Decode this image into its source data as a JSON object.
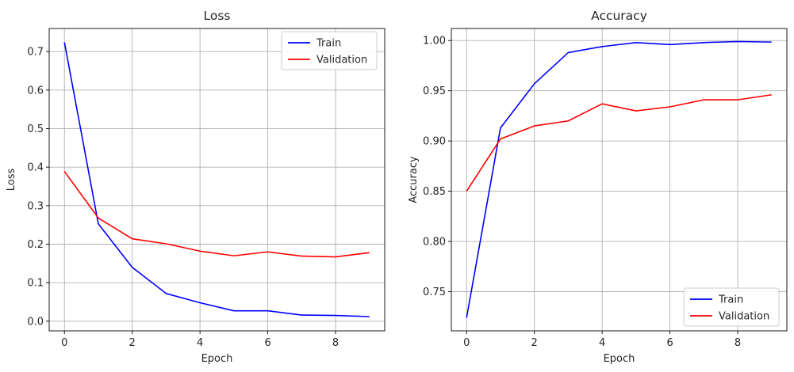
{
  "chart_data": [
    {
      "type": "line",
      "title": "Loss",
      "xlabel": "Epoch",
      "ylabel": "Loss",
      "x": [
        0,
        1,
        2,
        3,
        4,
        5,
        6,
        7,
        8,
        9
      ],
      "xlim": [
        -0.45,
        9.45
      ],
      "ylim": [
        -0.025,
        0.76
      ],
      "xticks": [
        0,
        2,
        4,
        6,
        8
      ],
      "yticks": [
        0.0,
        0.1,
        0.2,
        0.3,
        0.4,
        0.5,
        0.6,
        0.7
      ],
      "ytick_labels": [
        "0.0",
        "0.1",
        "0.2",
        "0.3",
        "0.4",
        "0.5",
        "0.6",
        "0.7"
      ],
      "grid": true,
      "legend": "upper-right",
      "series": [
        {
          "name": "Train",
          "color": "#0000ff",
          "values": [
            0.724,
            0.253,
            0.14,
            0.072,
            0.048,
            0.027,
            0.027,
            0.016,
            0.015,
            0.012
          ]
        },
        {
          "name": "Validation",
          "color": "#ff0000",
          "values": [
            0.389,
            0.268,
            0.214,
            0.201,
            0.182,
            0.17,
            0.18,
            0.169,
            0.167,
            0.178
          ]
        }
      ]
    },
    {
      "type": "line",
      "title": "Accuracy",
      "xlabel": "Epoch",
      "ylabel": "Accuracy",
      "x": [
        0,
        1,
        2,
        3,
        4,
        5,
        6,
        7,
        8,
        9
      ],
      "xlim": [
        -0.45,
        9.45
      ],
      "ylim": [
        0.711,
        1.012
      ],
      "xticks": [
        0,
        2,
        4,
        6,
        8
      ],
      "yticks": [
        0.75,
        0.8,
        0.85,
        0.9,
        0.95,
        1.0
      ],
      "ytick_labels": [
        "0.75",
        "0.80",
        "0.85",
        "0.90",
        "0.95",
        "1.00"
      ],
      "grid": true,
      "legend": "lower-right",
      "series": [
        {
          "name": "Train",
          "color": "#0000ff",
          "values": [
            0.724,
            0.913,
            0.957,
            0.988,
            0.994,
            0.998,
            0.996,
            0.998,
            0.999,
            0.9985
          ]
        },
        {
          "name": "Validation",
          "color": "#ff0000",
          "values": [
            0.85,
            0.902,
            0.915,
            0.92,
            0.937,
            0.93,
            0.934,
            0.941,
            0.941,
            0.946
          ]
        }
      ]
    }
  ]
}
